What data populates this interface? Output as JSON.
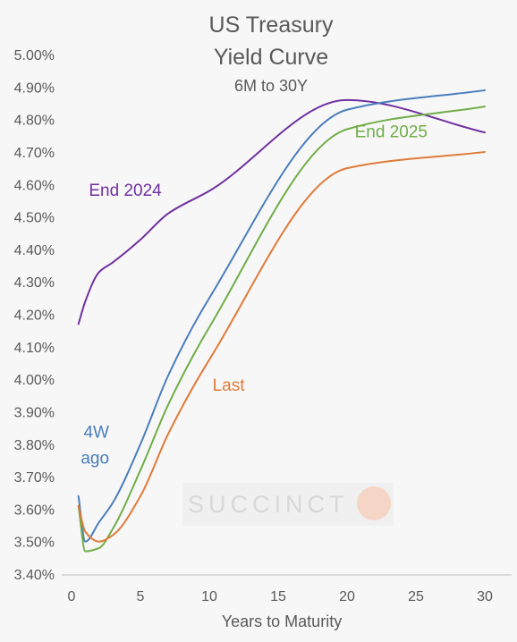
{
  "chart_data": {
    "type": "line",
    "title_lines": [
      "US Treasury",
      "Yield Curve"
    ],
    "subtitle": "6M to 30Y",
    "xlabel": "Years to Maturity",
    "ylabel": "",
    "xlim": [
      0,
      30
    ],
    "ylim": [
      3.4,
      5.0
    ],
    "xticks": [
      0,
      5,
      10,
      15,
      20,
      25,
      30
    ],
    "xtick_labels": [
      "0",
      "5",
      "10",
      "15",
      "20",
      "25",
      "30"
    ],
    "yticks": [
      3.4,
      3.5,
      3.6,
      3.7,
      3.8,
      3.9,
      4.0,
      4.1,
      4.2,
      4.3,
      4.4,
      4.5,
      4.6,
      4.7,
      4.8,
      4.9,
      5.0
    ],
    "ytick_labels": [
      "3.40%",
      "3.50%",
      "3.60%",
      "3.70%",
      "3.80%",
      "3.90%",
      "4.00%",
      "4.10%",
      "4.20%",
      "4.30%",
      "4.40%",
      "4.50%",
      "4.60%",
      "4.70%",
      "4.80%",
      "4.90%",
      "5.00%"
    ],
    "grid": false,
    "watermark": "SUCCINCT",
    "series": [
      {
        "name": "End 2024",
        "color": "#7030a0",
        "x": [
          0.5,
          1,
          2,
          3,
          5,
          7,
          10,
          20,
          30
        ],
        "y": [
          4.17,
          4.24,
          4.33,
          4.36,
          4.43,
          4.51,
          4.58,
          4.86,
          4.76
        ]
      },
      {
        "name": "4W ago",
        "color": "#4a7ebb",
        "x": [
          0.5,
          1,
          2,
          3,
          5,
          7,
          10,
          20,
          30
        ],
        "y": [
          3.64,
          3.5,
          3.56,
          3.62,
          3.8,
          4.01,
          4.25,
          4.83,
          4.89
        ]
      },
      {
        "name": "End 2025",
        "color": "#70ad47",
        "x": [
          0.5,
          1,
          2,
          3,
          5,
          7,
          10,
          20,
          30
        ],
        "y": [
          3.61,
          3.47,
          3.48,
          3.54,
          3.72,
          3.92,
          4.16,
          4.77,
          4.84
        ]
      },
      {
        "name": "Last",
        "color": "#e07b39",
        "x": [
          0.5,
          1,
          2,
          3,
          5,
          7,
          10,
          20,
          30
        ],
        "y": [
          3.61,
          3.53,
          3.5,
          3.52,
          3.64,
          3.83,
          4.06,
          4.65,
          4.7
        ]
      }
    ],
    "annotations": [
      {
        "text": "End 2024",
        "x": 3.9,
        "y": 4.565,
        "color": "#7030a0"
      },
      {
        "text": "End 2025",
        "x": 23.2,
        "y": 4.745,
        "color": "#70ad47"
      },
      {
        "text": "Last",
        "x": 11.4,
        "y": 3.965,
        "color": "#e07b39"
      },
      {
        "text": "4W",
        "x": 1.8,
        "y": 3.82,
        "color": "#4a7ebb"
      },
      {
        "text": "ago",
        "x": 1.7,
        "y": 3.74,
        "color": "#4a7ebb"
      }
    ]
  }
}
